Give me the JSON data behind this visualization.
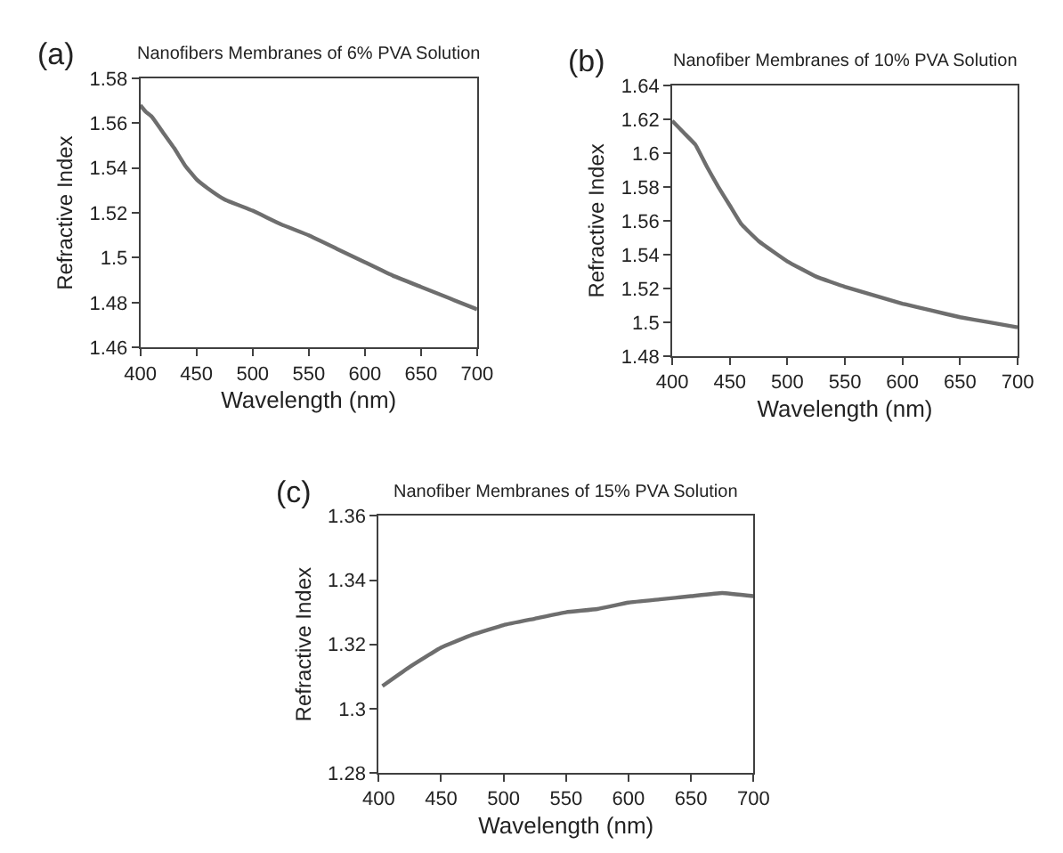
{
  "chart_data": [
    {
      "type": "line",
      "title": "Nanofibers Membranes of 6% PVA Solution",
      "xlabel": "Wavelength (nm)",
      "ylabel": "Refractive Index",
      "annotations": [
        "(a)"
      ],
      "color": "#6e6e6e",
      "x": [
        400,
        405,
        410,
        420,
        430,
        440,
        450,
        460,
        475,
        500,
        525,
        550,
        575,
        600,
        625,
        650,
        675,
        700
      ],
      "values": [
        1.568,
        1.565,
        1.563,
        1.556,
        1.549,
        1.541,
        1.535,
        1.531,
        1.526,
        1.521,
        1.515,
        1.51,
        1.504,
        1.498,
        1.492,
        1.487,
        1.482,
        1.477
      ],
      "xlim": [
        400,
        700
      ],
      "xticks": [
        400,
        450,
        500,
        550,
        600,
        650,
        700
      ],
      "ylim": [
        1.46,
        1.58
      ],
      "yticks": [
        1.46,
        1.48,
        1.5,
        1.52,
        1.54,
        1.56,
        1.58
      ]
    },
    {
      "type": "line",
      "title": "Nanofiber Membranes of 10% PVA Solution",
      "xlabel": "Wavelength (nm)",
      "ylabel": "Refractive Index",
      "annotations": [
        "(b)"
      ],
      "color": "#6e6e6e",
      "x": [
        400,
        410,
        420,
        430,
        440,
        450,
        460,
        475,
        500,
        525,
        550,
        575,
        600,
        625,
        650,
        675,
        700
      ],
      "values": [
        1.619,
        1.612,
        1.605,
        1.592,
        1.58,
        1.569,
        1.558,
        1.548,
        1.536,
        1.527,
        1.521,
        1.516,
        1.511,
        1.507,
        1.503,
        1.5,
        1.497
      ],
      "xlim": [
        400,
        700
      ],
      "xticks": [
        400,
        450,
        500,
        550,
        600,
        650,
        700
      ],
      "ylim": [
        1.48,
        1.64
      ],
      "yticks": [
        1.48,
        1.5,
        1.52,
        1.54,
        1.56,
        1.58,
        1.6,
        1.62,
        1.64
      ]
    },
    {
      "type": "line",
      "title": "Nanofiber Membranes of 15% PVA Solution",
      "xlabel": "Wavelength (nm)",
      "ylabel": "Refractive Index",
      "annotations": [
        "(c)"
      ],
      "color": "#6e6e6e",
      "x": [
        403,
        425,
        450,
        475,
        500,
        525,
        550,
        575,
        600,
        625,
        650,
        675,
        700
      ],
      "values": [
        1.307,
        1.313,
        1.319,
        1.323,
        1.326,
        1.328,
        1.33,
        1.331,
        1.333,
        1.334,
        1.335,
        1.336,
        1.335
      ],
      "xlim": [
        400,
        700
      ],
      "xticks": [
        400,
        450,
        500,
        550,
        600,
        650,
        700
      ],
      "ylim": [
        1.28,
        1.36
      ],
      "yticks": [
        1.28,
        1.3,
        1.32,
        1.34,
        1.36
      ]
    }
  ]
}
